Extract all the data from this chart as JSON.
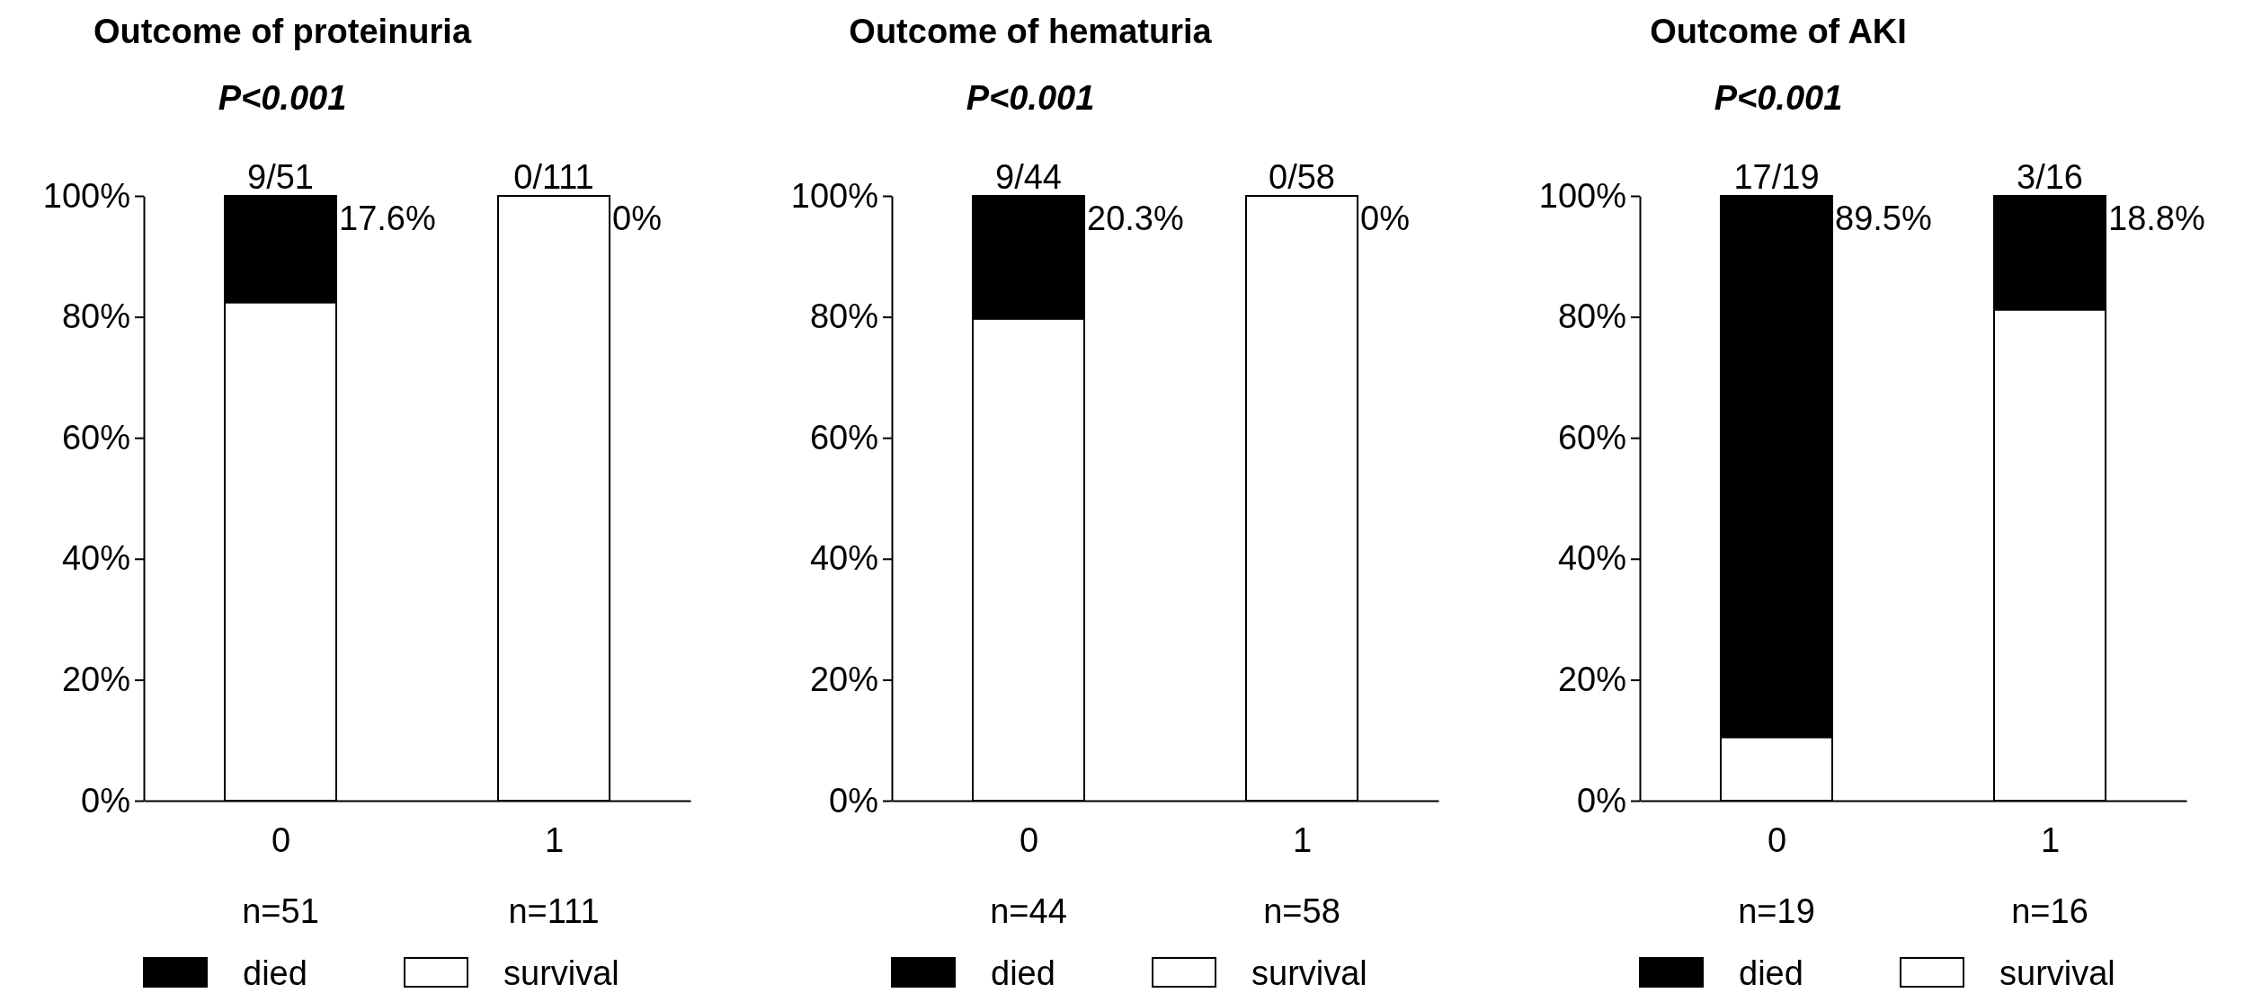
{
  "chart_data": [
    {
      "type": "bar",
      "stacked": true,
      "title": "Outcome of proteinuria",
      "subtitle": "P<0.001",
      "categories": [
        "0",
        "1"
      ],
      "ylim": [
        0,
        100
      ],
      "yticks": [
        {
          "value": 0,
          "label": "0%"
        },
        {
          "value": 20,
          "label": "20%"
        },
        {
          "value": 40,
          "label": "40%"
        },
        {
          "value": 60,
          "label": "60%"
        },
        {
          "value": 80,
          "label": "80%"
        },
        {
          "value": 100,
          "label": "100%"
        }
      ],
      "legend": "bottom",
      "series": [
        {
          "name": "survival",
          "color": "#ffffff",
          "values": [
            82.4,
            100
          ]
        },
        {
          "name": "died",
          "color": "#000000",
          "values": [
            17.6,
            0
          ]
        }
      ],
      "annotations": [
        {
          "text": "9/51",
          "x": "0",
          "y": 100
        },
        {
          "text": "0/111",
          "x": "1",
          "y": 100
        },
        {
          "text": "17.6%",
          "x": "0",
          "y": 100
        },
        {
          "text": "0%",
          "x": "1",
          "y": 100
        },
        "n=51",
        "n=111"
      ]
    },
    {
      "type": "bar",
      "stacked": true,
      "title": "Outcome of hematuria",
      "subtitle": "P<0.001",
      "categories": [
        "0",
        "1"
      ],
      "ylim": [
        0,
        100
      ],
      "yticks": [
        {
          "value": 0,
          "label": "0%"
        },
        {
          "value": 20,
          "label": "20%"
        },
        {
          "value": 40,
          "label": "40%"
        },
        {
          "value": 60,
          "label": "60%"
        },
        {
          "value": 80,
          "label": "80%"
        },
        {
          "value": 100,
          "label": "100%"
        }
      ],
      "legend": "bottom",
      "series": [
        {
          "name": "survival",
          "color": "#ffffff",
          "values": [
            79.7,
            100
          ]
        },
        {
          "name": "died",
          "color": "#000000",
          "values": [
            20.3,
            0
          ]
        }
      ],
      "annotations": [
        {
          "text": "9/44",
          "x": "0",
          "y": 100
        },
        {
          "text": "0/58",
          "x": "1",
          "y": 100
        },
        {
          "text": "20.3%",
          "x": "0",
          "y": 100
        },
        {
          "text": "0%",
          "x": "1",
          "y": 100
        },
        "n=44",
        "n=58"
      ]
    },
    {
      "type": "bar",
      "stacked": true,
      "title": "Outcome of AKI",
      "subtitle": "P<0.001",
      "categories": [
        "0",
        "1"
      ],
      "ylim": [
        0,
        100
      ],
      "yticks": [
        {
          "value": 0,
          "label": "0%"
        },
        {
          "value": 20,
          "label": "20%"
        },
        {
          "value": 40,
          "label": "40%"
        },
        {
          "value": 60,
          "label": "60%"
        },
        {
          "value": 80,
          "label": "80%"
        },
        {
          "value": 100,
          "label": "100%"
        }
      ],
      "legend": "bottom",
      "series": [
        {
          "name": "survival",
          "color": "#ffffff",
          "values": [
            10.5,
            81.2
          ]
        },
        {
          "name": "died",
          "color": "#000000",
          "values": [
            89.5,
            18.8
          ]
        }
      ],
      "annotations": [
        {
          "text": "17/19",
          "x": "0",
          "y": 100
        },
        {
          "text": "3/16",
          "x": "1",
          "y": 100
        },
        {
          "text": "89.5%",
          "x": "0",
          "y": 100
        },
        {
          "text": "18.8%",
          "x": "1",
          "y": 100
        },
        "n=19",
        "n=16"
      ]
    }
  ]
}
